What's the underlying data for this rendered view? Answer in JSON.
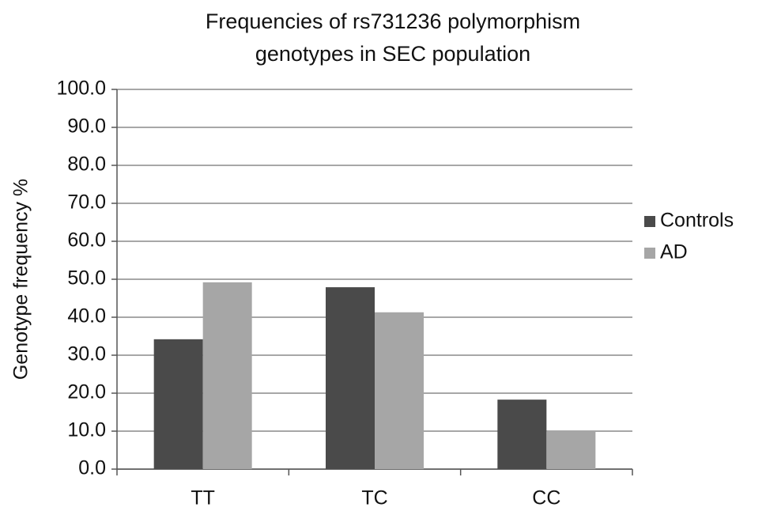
{
  "chart_data": {
    "type": "bar",
    "title": [
      "Frequencies of rs731236 polymorphism",
      "genotypes in SEC population"
    ],
    "y_label": "Genotype frequency %",
    "categories": [
      "TT",
      "TC",
      "CC"
    ],
    "series": [
      {
        "name": "Controls",
        "color": "#4a4a4a",
        "values": [
          34.2,
          47.9,
          18.3
        ]
      },
      {
        "name": "AD",
        "color": "#a6a6a6",
        "values": [
          49.2,
          41.3,
          10.0
        ]
      }
    ],
    "ylim": [
      0,
      100
    ],
    "yticks": [
      {
        "value": 0,
        "label": "0.0"
      },
      {
        "value": 10,
        "label": "10.0"
      },
      {
        "value": 20,
        "label": "20.0"
      },
      {
        "value": 30,
        "label": "30.0"
      },
      {
        "value": 40,
        "label": "40.0"
      },
      {
        "value": 50,
        "label": "50.0"
      },
      {
        "value": 60,
        "label": "60.0"
      },
      {
        "value": 70,
        "label": "70.0"
      },
      {
        "value": 80,
        "label": "80.0"
      },
      {
        "value": 90,
        "label": "90.0"
      },
      {
        "value": 100,
        "label": "100.0"
      }
    ],
    "grid": true,
    "legend": "right"
  }
}
